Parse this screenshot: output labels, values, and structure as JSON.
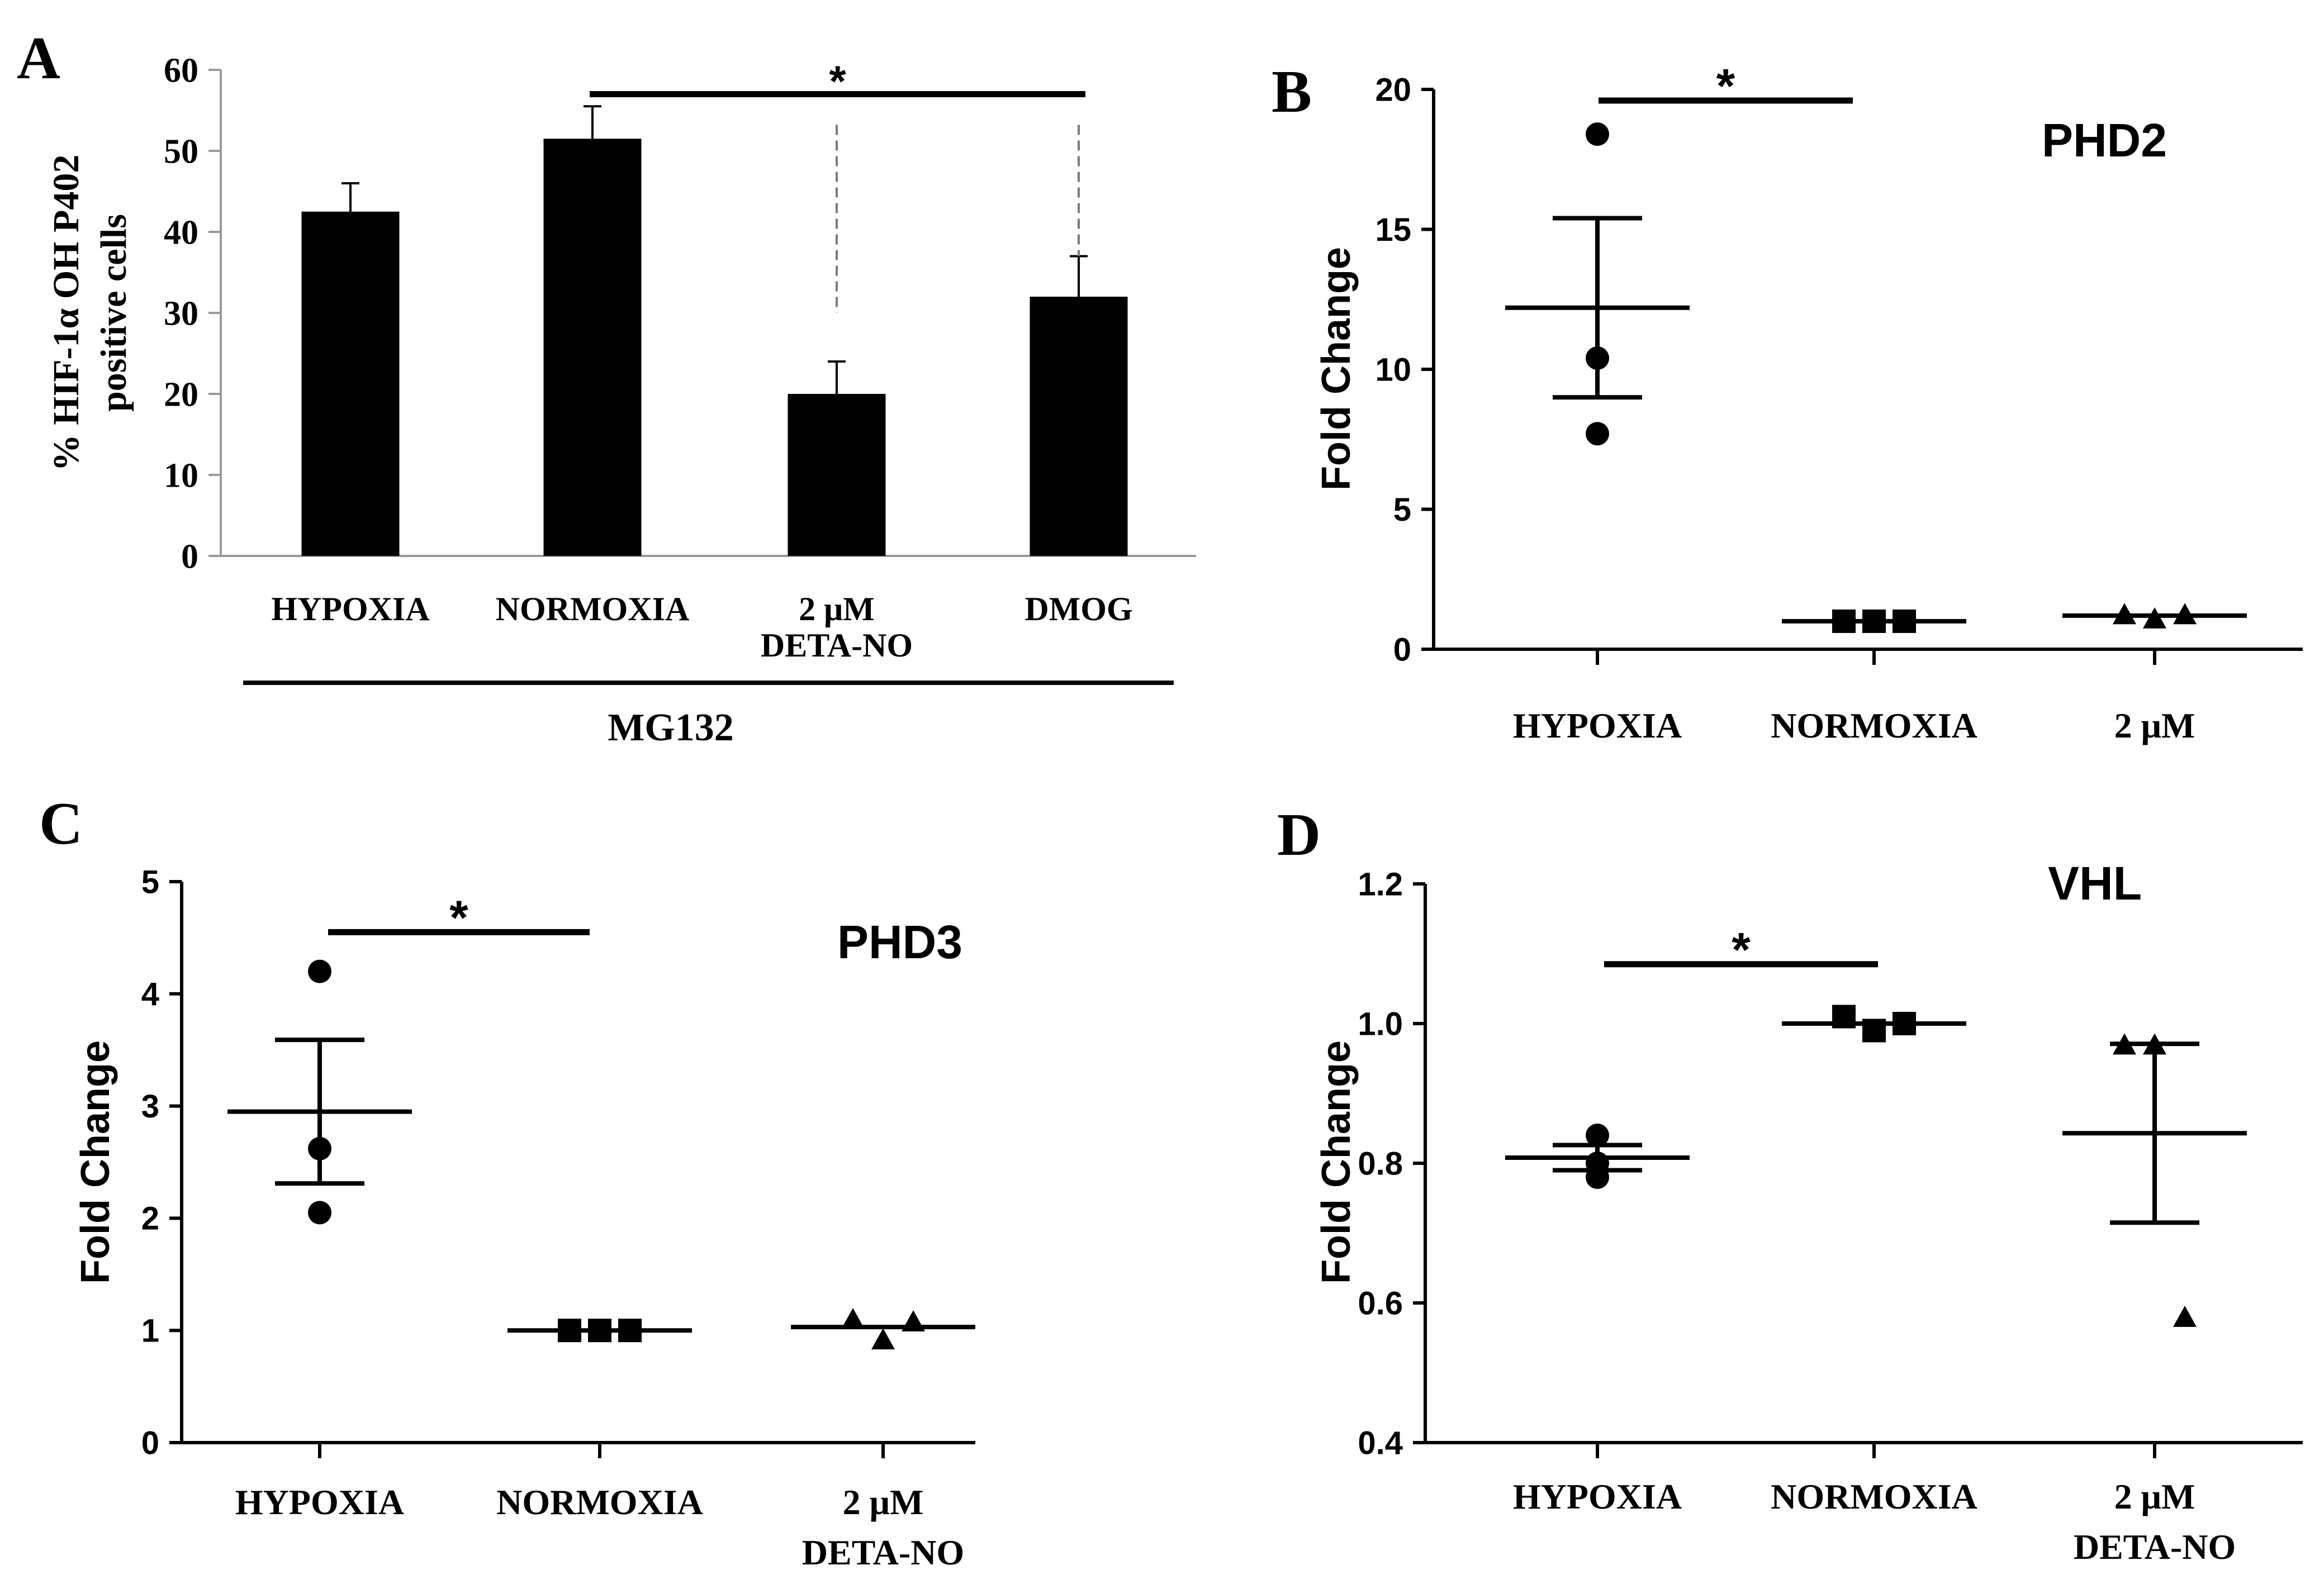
{
  "chart_data": [
    {
      "panel": "A",
      "type": "bar",
      "ylabel_line1": "% HIF-1α OH P402",
      "ylabel_line2": "positive cells",
      "ylim": [
        0,
        60
      ],
      "yticks": [
        "0",
        "10",
        "20",
        "30",
        "40",
        "50",
        "60"
      ],
      "categories": [
        [
          "HYPOXIA"
        ],
        [
          "NORMOXIA"
        ],
        [
          "2 μM",
          "DETA-NO"
        ],
        [
          "DMOG"
        ]
      ],
      "values": [
        42.5,
        51.5,
        20.0,
        32.0
      ],
      "errors": [
        3.5,
        4.0,
        4.0,
        5.0
      ],
      "group_label": "MG132",
      "significance": {
        "label": "*",
        "from": 1,
        "to": 3,
        "y": 57
      }
    },
    {
      "panel": "B",
      "type": "scatter",
      "title": "PHD2",
      "ylabel": "Fold Change",
      "ylim": [
        0,
        20
      ],
      "yticks": [
        "0",
        "5",
        "10",
        "15",
        "20"
      ],
      "categories": [
        [
          "HYPOXIA"
        ],
        [
          "NORMOXIA"
        ],
        [
          "2 μM"
        ]
      ],
      "points": [
        [
          18.4,
          10.4,
          7.7
        ],
        [
          1.0,
          1.0,
          1.0
        ],
        [
          1.25,
          1.1,
          1.25
        ]
      ],
      "markers": [
        "circle",
        "square",
        "triangle"
      ],
      "means": [
        12.2,
        1.0,
        1.2
      ],
      "sem": [
        3.2,
        0,
        0
      ],
      "significance": {
        "label": "*",
        "from": 0,
        "to": 1,
        "y": 19.6
      }
    },
    {
      "panel": "C",
      "type": "scatter",
      "title": "PHD3",
      "ylabel": "Fold Change",
      "ylim": [
        0,
        5
      ],
      "yticks": [
        "0",
        "1",
        "2",
        "3",
        "4",
        "5"
      ],
      "categories": [
        [
          "HYPOXIA"
        ],
        [
          "NORMOXIA"
        ],
        [
          "2 μM",
          "DETA-NO"
        ]
      ],
      "points": [
        [
          4.2,
          2.62,
          2.05
        ],
        [
          1.0,
          1.0,
          1.0
        ],
        [
          1.1,
          0.92,
          1.08
        ]
      ],
      "markers": [
        "circle",
        "square",
        "triangle"
      ],
      "means": [
        2.95,
        1.0,
        1.03
      ],
      "sem": [
        0.64,
        0,
        0
      ],
      "significance": {
        "label": "*",
        "from": 0,
        "to": 1,
        "y": 4.55
      }
    },
    {
      "panel": "D",
      "type": "scatter",
      "title": "VHL",
      "ylabel": "Fold Change",
      "ylim": [
        0.4,
        1.2
      ],
      "yticks": [
        "0.4",
        "0.6",
        "0.8",
        "1.0",
        "1.2"
      ],
      "categories": [
        [
          "HYPOXIA"
        ],
        [
          "NORMOXIA"
        ],
        [
          "2 μM",
          "DETA-NO"
        ]
      ],
      "points": [
        [
          0.84,
          0.8,
          0.78
        ],
        [
          1.01,
          0.99,
          1.0
        ],
        [
          0.97,
          0.97,
          0.58
        ]
      ],
      "markers": [
        "circle",
        "square",
        "triangle"
      ],
      "means": [
        0.808,
        1.0,
        0.843
      ],
      "sem": [
        0.018,
        0,
        0.128
      ],
      "significance": {
        "label": "*",
        "from": 0,
        "to": 1,
        "y": 1.085
      }
    }
  ]
}
